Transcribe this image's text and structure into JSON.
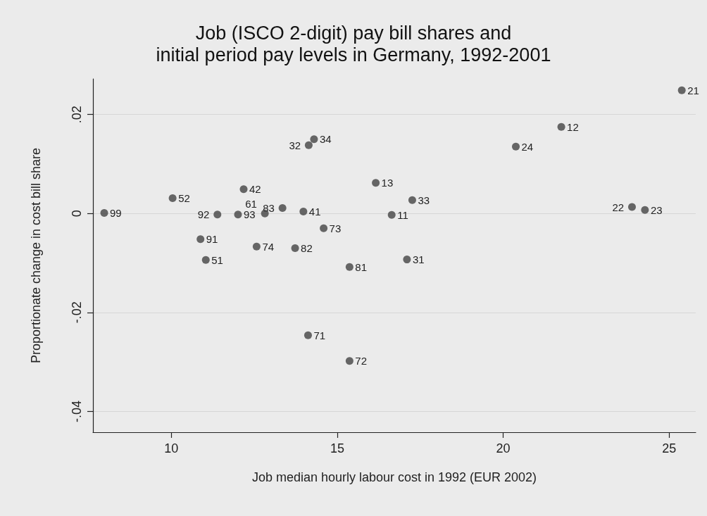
{
  "chart_data": {
    "type": "scatter",
    "title": "Job (ISCO 2-digit) pay bill shares and\ninitial period pay levels in Germany, 1992-2001",
    "xlabel": "Job median hourly labour cost in 1992 (EUR 2002)",
    "ylabel": "Proportionate change in cost bill share",
    "x": [
      7.98,
      10.04,
      12.18,
      11.39,
      12.01,
      12.82,
      13.35,
      13.98,
      14.59,
      10.88,
      12.57,
      13.73,
      11.04,
      15.37,
      14.3,
      14.14,
      16.16,
      17.26,
      16.64,
      17.1,
      21.75,
      20.38,
      23.88,
      24.27,
      25.38,
      14.12,
      15.37
    ],
    "values": [
      0.0001,
      0.0031,
      0.0049,
      -0.0002,
      -0.0002,
      0.0,
      0.0011,
      0.0004,
      -0.003,
      -0.0052,
      -0.0067,
      -0.007,
      -0.0094,
      -0.0108,
      0.015,
      0.0138,
      0.0062,
      0.0027,
      -0.0003,
      -0.0093,
      0.0175,
      0.0135,
      0.0013,
      0.0007,
      0.0249,
      -0.0246,
      -0.0298
    ],
    "color": "#444444",
    "marker": "circle",
    "xlim": [
      7.64,
      25.8
    ],
    "ylim": [
      -0.0442,
      0.0272
    ],
    "xticks": [
      10,
      15,
      20,
      25
    ],
    "yticks": [
      {
        "value": 0.02,
        "label": ".02"
      },
      {
        "value": 0,
        "label": "0"
      },
      {
        "value": -0.02,
        "label": "-.02"
      },
      {
        "value": -0.04,
        "label": "-.04"
      }
    ],
    "grid": "y",
    "annotations": [
      {
        "text": "99",
        "x": 7.98,
        "y": 0.0001
      },
      {
        "text": "52",
        "x": 10.04,
        "y": 0.0031
      },
      {
        "text": "42",
        "x": 12.18,
        "y": 0.0049
      },
      {
        "text": "92",
        "x": 11.39,
        "y": -0.0002
      },
      {
        "text": "93",
        "x": 12.01,
        "y": -0.0002
      },
      {
        "text": "61",
        "x": 12.82,
        "y": 0.0
      },
      {
        "text": "83",
        "x": 13.35,
        "y": 0.0011
      },
      {
        "text": "41",
        "x": 13.98,
        "y": 0.0004
      },
      {
        "text": "73",
        "x": 14.59,
        "y": -0.003
      },
      {
        "text": "91",
        "x": 10.88,
        "y": -0.0052
      },
      {
        "text": "74",
        "x": 12.57,
        "y": -0.0067
      },
      {
        "text": "82",
        "x": 13.73,
        "y": -0.007
      },
      {
        "text": "51",
        "x": 11.04,
        "y": -0.0094
      },
      {
        "text": "81",
        "x": 15.37,
        "y": -0.0108
      },
      {
        "text": "34",
        "x": 14.3,
        "y": 0.015
      },
      {
        "text": "32",
        "x": 14.14,
        "y": 0.0138
      },
      {
        "text": "13",
        "x": 16.16,
        "y": 0.0062
      },
      {
        "text": "33",
        "x": 17.26,
        "y": 0.0027
      },
      {
        "text": "11",
        "x": 16.64,
        "y": -0.0003
      },
      {
        "text": "31",
        "x": 17.1,
        "y": -0.0093
      },
      {
        "text": "12",
        "x": 21.75,
        "y": 0.0175
      },
      {
        "text": "24",
        "x": 20.38,
        "y": 0.0135
      },
      {
        "text": "22",
        "x": 23.88,
        "y": 0.0013
      },
      {
        "text": "23",
        "x": 24.27,
        "y": 0.0007
      },
      {
        "text": "21",
        "x": 25.38,
        "y": 0.0249
      },
      {
        "text": "71",
        "x": 14.12,
        "y": -0.0246
      },
      {
        "text": "72",
        "x": 15.37,
        "y": -0.0298
      }
    ]
  }
}
